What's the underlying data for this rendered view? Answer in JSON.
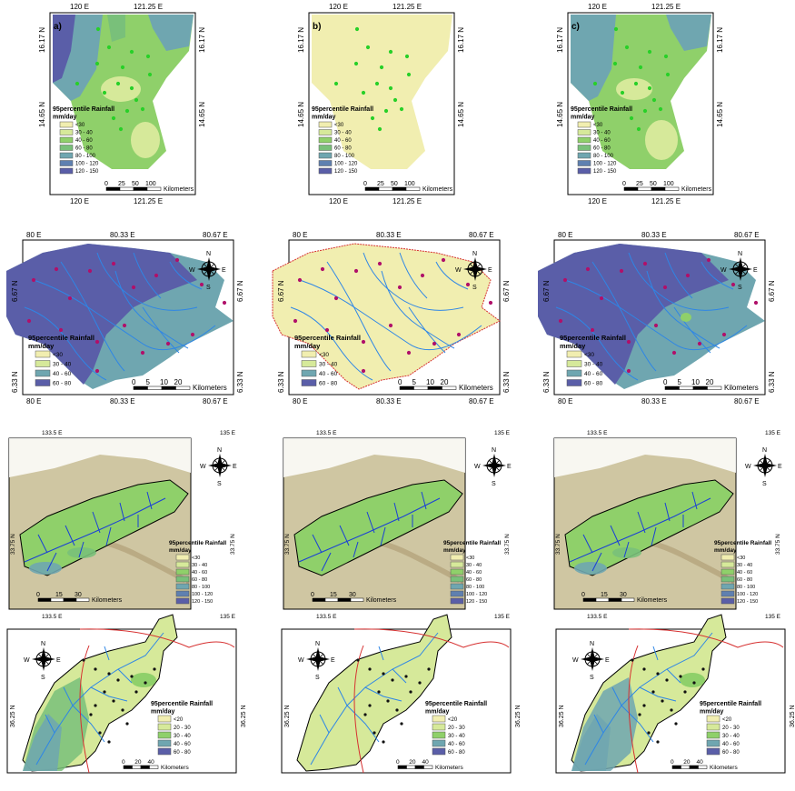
{
  "panel_letters": [
    "a)",
    "b)",
    "c)"
  ],
  "legend_title_line1": "95percentile Rainfall",
  "legend_title_line2": "mm/day",
  "scale_unit": "Kilometers",
  "north_labels": {
    "n": "N",
    "s": "S",
    "e": "E",
    "w": "W"
  },
  "row1": {
    "top_ticks": [
      "120",
      "E",
      "121.25",
      "E"
    ],
    "bottom_ticks": [
      "120",
      "E",
      "121.25",
      "E"
    ],
    "lat_ticks": [
      "16.17",
      "N",
      "14.65",
      "N"
    ],
    "scale_ticks": [
      "0",
      "25",
      "50",
      "100"
    ],
    "legend": [
      "<30",
      "30 - 40",
      "40 - 60",
      "60 - 80",
      "80 - 100",
      "100 - 120",
      "120 - 150"
    ]
  },
  "row2": {
    "top_ticks": [
      "80",
      "E",
      "80.33",
      "E",
      "80.67",
      "E"
    ],
    "bottom_ticks": [
      "80",
      "E",
      "80.33",
      "E",
      "80.67",
      "E"
    ],
    "lat_ticks": [
      "6.67",
      "N",
      "6.33",
      "N"
    ],
    "scale_ticks": [
      "0",
      "5",
      "10",
      "20"
    ],
    "legend": [
      "<30",
      "30 - 40",
      "40 - 60",
      "60 - 80"
    ]
  },
  "row3": {
    "top_ticks": [
      "133.5",
      "E",
      "135",
      "E"
    ],
    "bottom_ticks": [
      "133.5",
      "E",
      "135",
      "E"
    ],
    "lat_ticks": [
      "33.75",
      "N"
    ],
    "scale_ticks": [
      "0",
      "15",
      "30"
    ],
    "legend": [
      "<30",
      "30 - 40",
      "40 - 60",
      "60 - 80",
      "80 - 100",
      "100 - 120",
      "120 - 150"
    ]
  },
  "row4": {
    "lat_ticks": [
      "36.25",
      "N"
    ],
    "scale_ticks": [
      "0",
      "20",
      "40"
    ],
    "legend": [
      "<20",
      "20 - 30",
      "30 - 40",
      "40 - 60",
      "60 - 80"
    ]
  },
  "colors": {
    "c1": "#f1eeb0",
    "c2": "#d6e99a",
    "c3": "#8fd06a",
    "c4": "#79c07a",
    "c5": "#6fa6b0",
    "c6": "#5f80b0",
    "c7": "#5a5ea8",
    "stream": "#2e86e6",
    "boundary_red": "#d63030",
    "station_green": "#28d028",
    "station_magenta": "#b0106a",
    "terrain": "#cfc6a2"
  }
}
